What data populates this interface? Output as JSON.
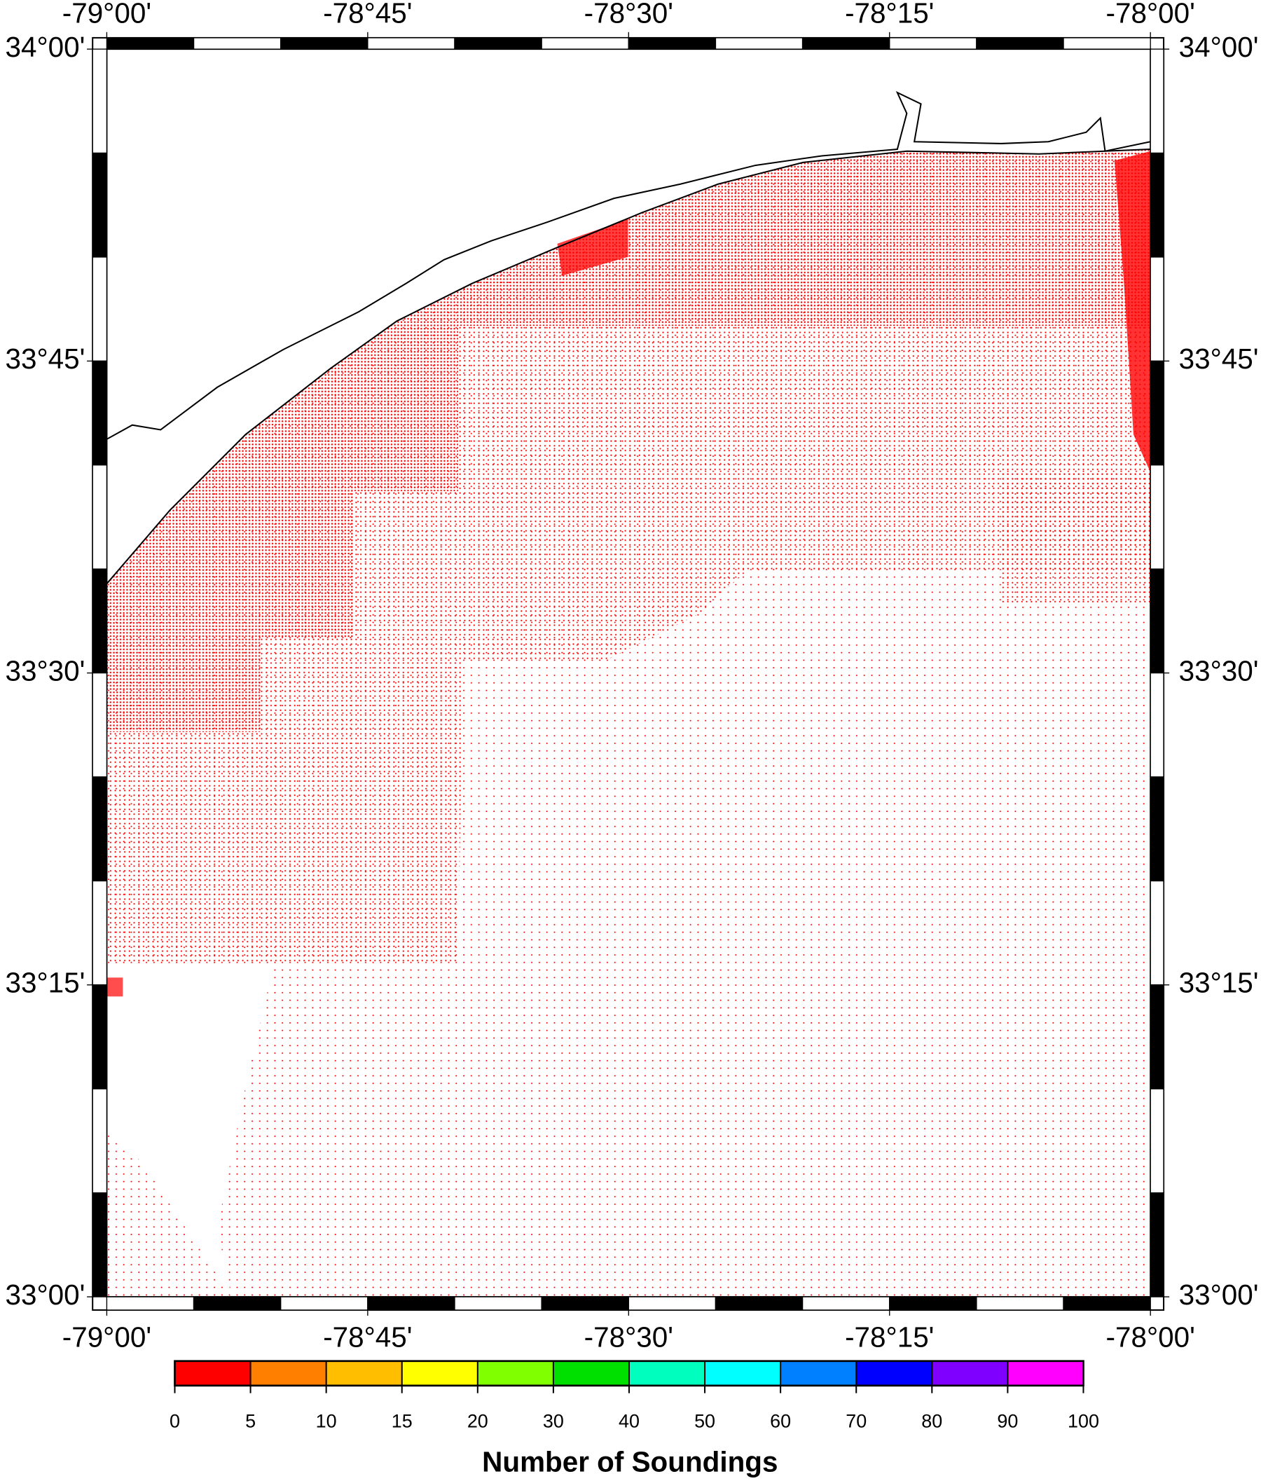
{
  "map": {
    "xlim": [
      -79,
      -78
    ],
    "ylim": [
      33,
      34
    ],
    "xticks": [
      {
        "value": -79,
        "label": "-79°00'"
      },
      {
        "value": -78.75,
        "label": "-78°45'"
      },
      {
        "value": -78.5,
        "label": "-78°30'"
      },
      {
        "value": -78.25,
        "label": "-78°15'"
      },
      {
        "value": -78,
        "label": "-78°00'"
      }
    ],
    "yticks": [
      {
        "value": 33,
        "label": "33°00'"
      },
      {
        "value": 33.25,
        "label": "33°15'"
      },
      {
        "value": 33.5,
        "label": "33°30'"
      },
      {
        "value": 33.75,
        "label": "33°45'"
      },
      {
        "value": 34,
        "label": "34°00'"
      }
    ],
    "colorbar": {
      "title": "Number of Soundings",
      "ticks": [
        0,
        5,
        10,
        15,
        20,
        30,
        40,
        50,
        60,
        70,
        80,
        90,
        100
      ],
      "colors": [
        "#ff0000",
        "#ff8000",
        "#ffbf00",
        "#ffff00",
        "#80ff00",
        "#00e000",
        "#00ffbf",
        "#00ffff",
        "#0080ff",
        "#0000ff",
        "#8000ff",
        "#ff00ff"
      ]
    }
  }
}
